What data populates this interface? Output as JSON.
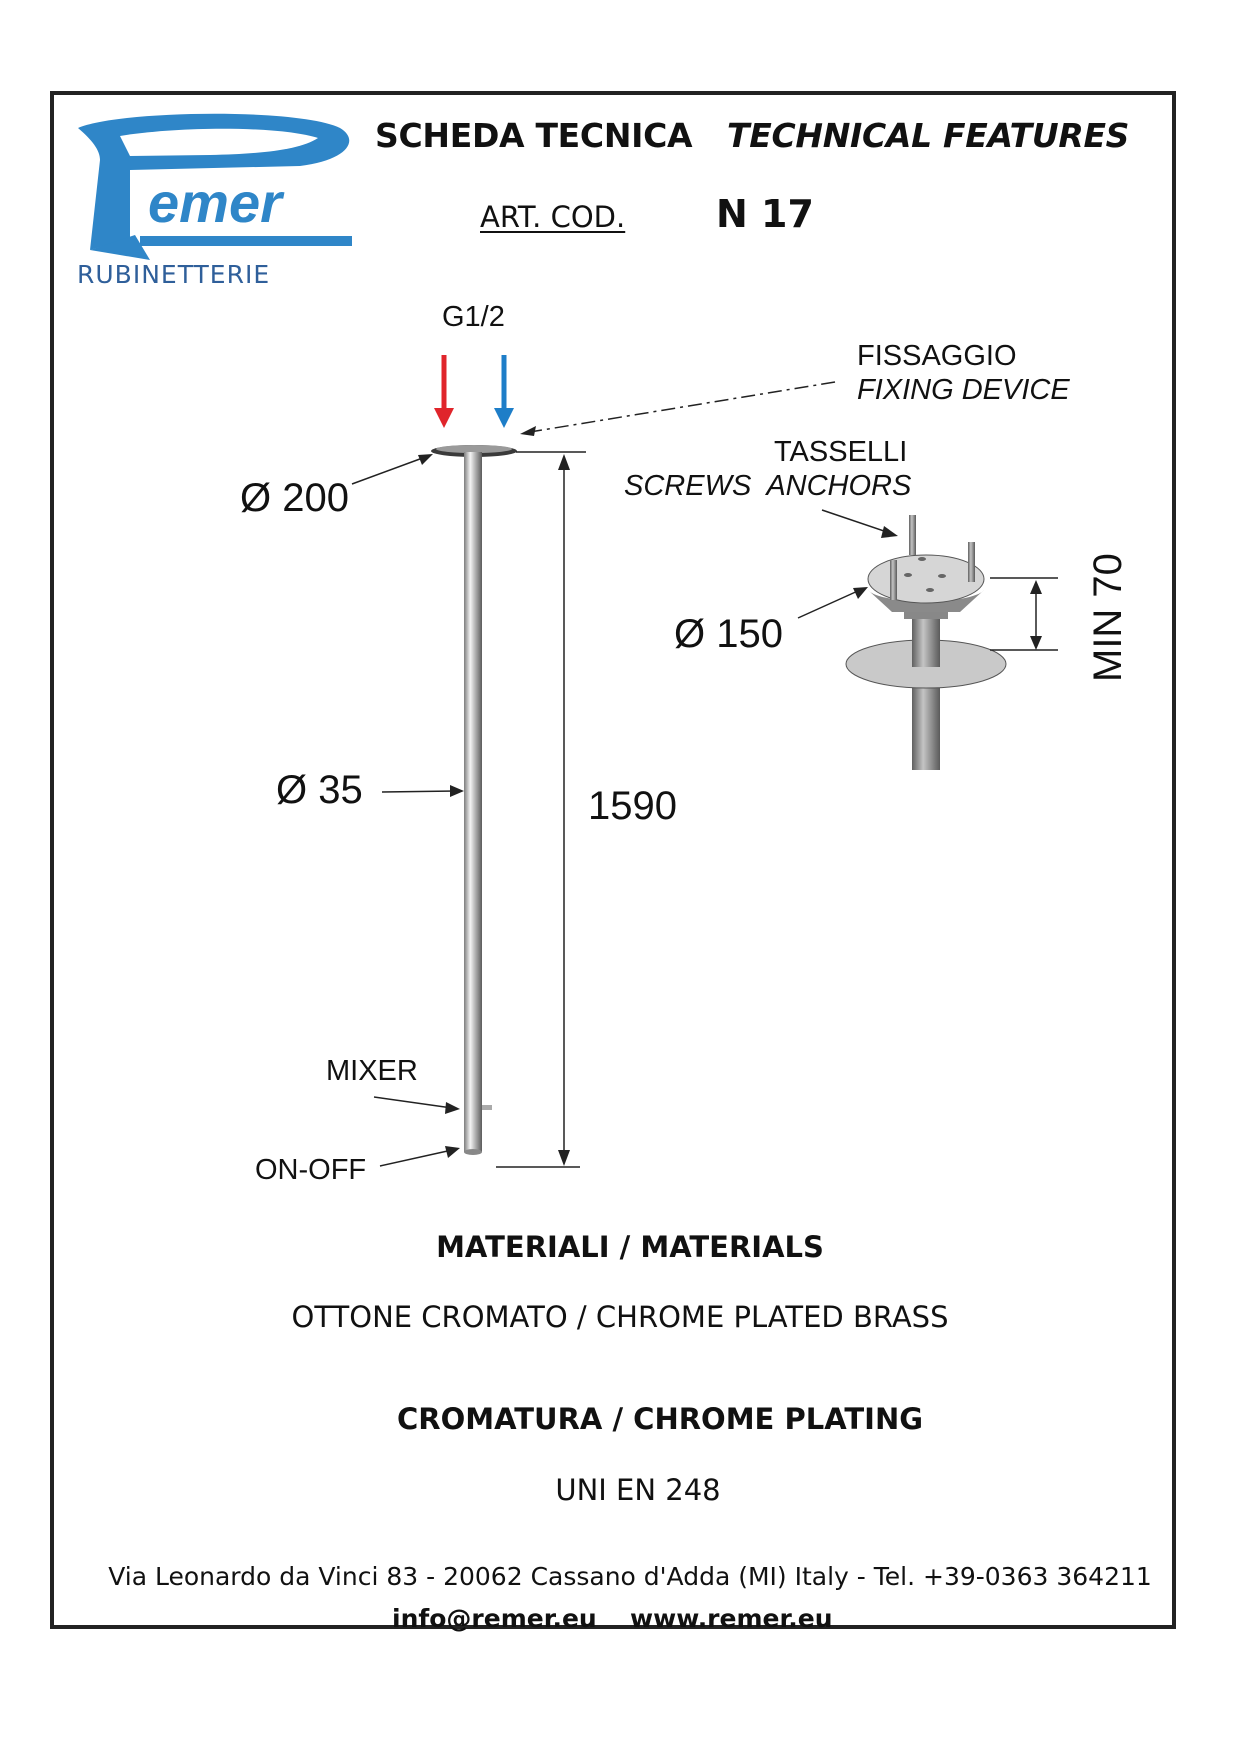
{
  "brand": {
    "logo_text": "Remer",
    "tagline": "RUBINETTERIE"
  },
  "header": {
    "title_it": "SCHEDA TECNICA",
    "title_en": "TECHNICAL FEATURES",
    "art_cod_label": "ART. COD.",
    "art_cod_value": "N 17"
  },
  "drawing": {
    "inlet": "G1/2",
    "fixing_it": "FISSAGGIO",
    "fixing_en": "FIXING DEVICE",
    "anchors_it": "TASSELLI",
    "anchors_en": "SCREWS  ANCHORS",
    "dia_flange": "Ø 200",
    "dia_base": "Ø 150",
    "dia_tube": "Ø 35",
    "length": "1590",
    "min_depth": "MIN 70",
    "mixer": "MIXER",
    "on_off": "ON-OFF",
    "hot_color": "#e0252b",
    "cold_color": "#1e7ec8"
  },
  "materials": {
    "title": "MATERIALI / MATERIALS",
    "value": "OTTONE CROMATO / CHROME PLATED BRASS"
  },
  "plating": {
    "title": "CROMATURA / CHROME PLATING",
    "value": "UNI EN 248"
  },
  "footer": {
    "address": "Via Leonardo da Vinci 83 - 20062 Cassano d'Adda (MI) Italy - Tel. +39-0363 364211",
    "email": "info@remer.eu",
    "website": "www.remer.eu"
  },
  "colors": {
    "logo_blue": "#2f86c8"
  }
}
